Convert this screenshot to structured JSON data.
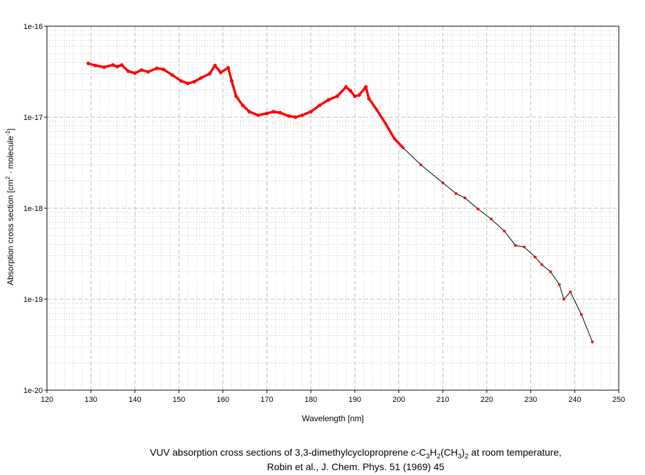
{
  "chart_data": {
    "type": "line",
    "title_line1_parts": [
      "VUV absorption cross sections of 3,3-dimethylcycloproprene c-C",
      "3",
      "H",
      "2",
      "(CH",
      "3",
      ")",
      "2",
      " at room temperature,"
    ],
    "title_line2": "Robin et al., J. Chem. Phys. 51 (1969) 45",
    "xlabel": "Wavelength [nm]",
    "ylabel_parts": [
      "Absorption cross section [cm",
      "2",
      " · molecule",
      "-1",
      "]"
    ],
    "xlim": [
      120,
      250
    ],
    "ylim": [
      1e-20,
      1e-16
    ],
    "yscale": "log",
    "xticks": [
      "120",
      "130",
      "140",
      "150",
      "160",
      "170",
      "180",
      "190",
      "200",
      "210",
      "220",
      "230",
      "240",
      "250"
    ],
    "yticks": [
      "1e-20",
      "1e-19",
      "1e-18",
      "1e-17",
      "1e-16"
    ],
    "grid": true,
    "colors": {
      "points": "#ff0000",
      "line": "#000000",
      "grid": "#c0c0c0"
    },
    "series": [
      {
        "name": "c-C3H2(CH3)2",
        "x": [
          129.4,
          131,
          133,
          135,
          136,
          137,
          138.5,
          140,
          141.5,
          143,
          145,
          146.5,
          148.5,
          150.5,
          152,
          153.5,
          155,
          157,
          158.2,
          159.5,
          161.2,
          162,
          163,
          164.5,
          166,
          168,
          170,
          171.5,
          173,
          175,
          176.5,
          178,
          180,
          182,
          184,
          186,
          188,
          189,
          190,
          191,
          192.5,
          193.2,
          195,
          197,
          199,
          201,
          205,
          210,
          213,
          215,
          218,
          221,
          224,
          226.5,
          228.5,
          231,
          232.5,
          234.5,
          236.5,
          237.5,
          239,
          241.5,
          244
        ],
        "y": [
          3.9e-17,
          3.7e-17,
          3.55e-17,
          3.75e-17,
          3.6e-17,
          3.75e-17,
          3.2e-17,
          3.05e-17,
          3.3e-17,
          3.15e-17,
          3.45e-17,
          3.35e-17,
          2.9e-17,
          2.5e-17,
          2.35e-17,
          2.45e-17,
          2.7e-17,
          3e-17,
          3.7e-17,
          3.1e-17,
          3.5e-17,
          2.5e-17,
          1.7e-17,
          1.35e-17,
          1.15e-17,
          1.05e-17,
          1.1e-17,
          1.15e-17,
          1.12e-17,
          1.03e-17,
          1e-17,
          1.05e-17,
          1.15e-17,
          1.35e-17,
          1.55e-17,
          1.7e-17,
          2.15e-17,
          1.95e-17,
          1.7e-17,
          1.75e-17,
          2.15e-17,
          1.6e-17,
          1.2e-17,
          8.5e-18,
          5.8e-18,
          4.6e-18,
          3e-18,
          1.9e-18,
          1.45e-18,
          1.3e-18,
          9.8e-19,
          7.6e-19,
          5.6e-19,
          3.9e-19,
          3.75e-19,
          2.9e-19,
          2.4e-19,
          2e-19,
          1.45e-19,
          1e-19,
          1.2e-19,
          6.8e-20,
          3.4e-20
        ]
      }
    ]
  }
}
